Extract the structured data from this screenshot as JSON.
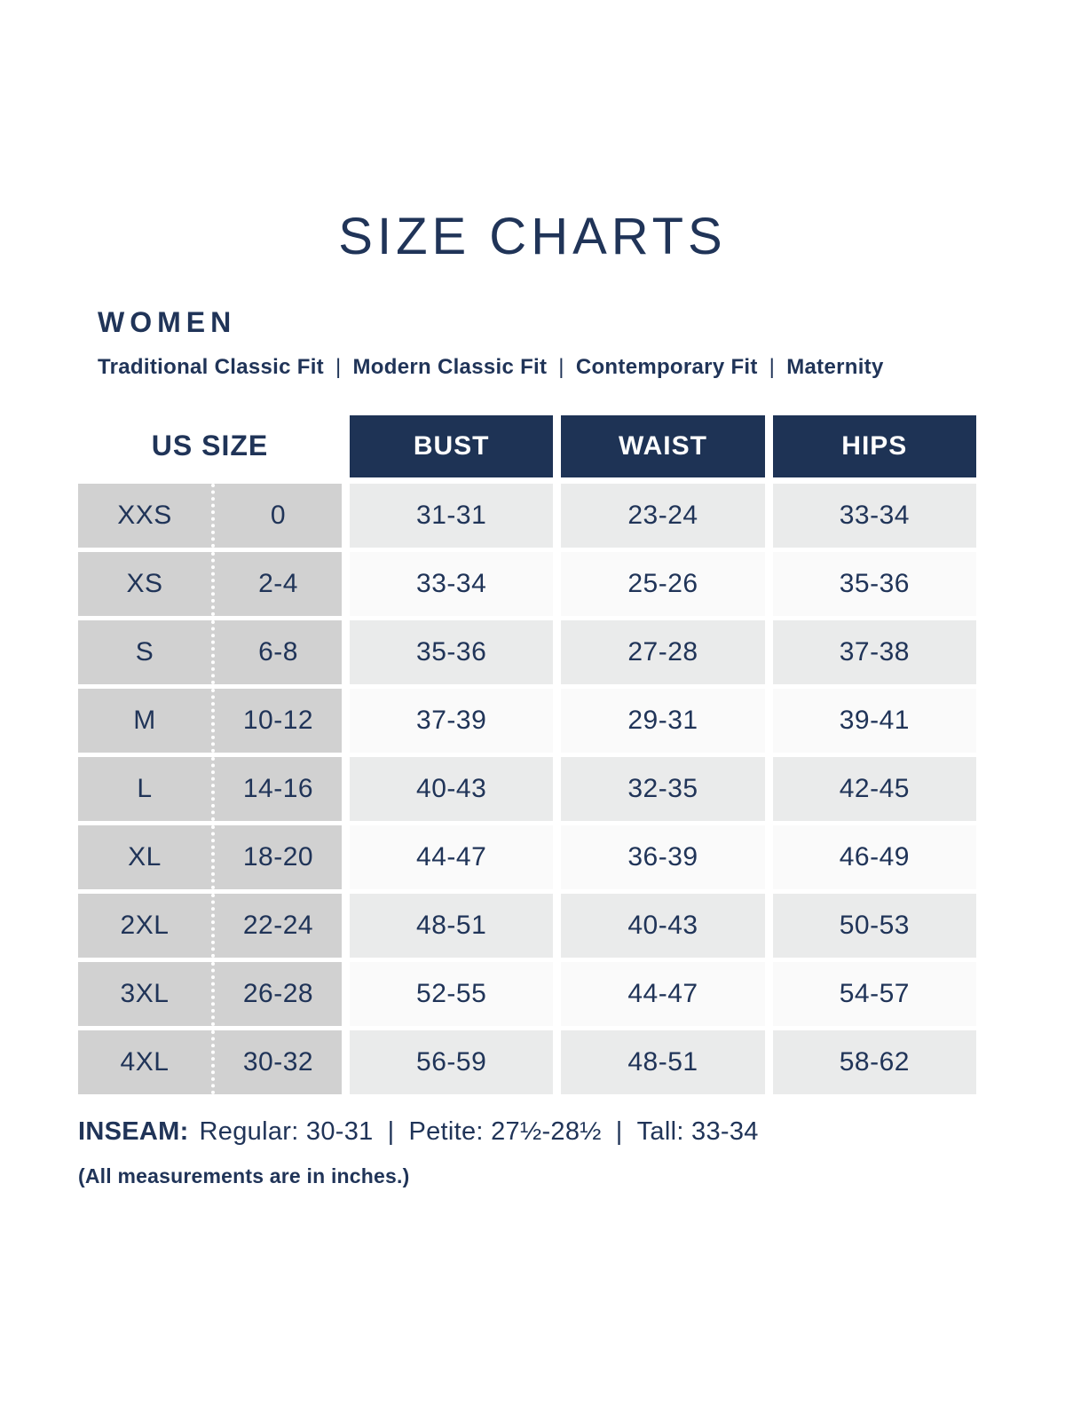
{
  "page": {
    "title": "SIZE CHARTS",
    "section_heading": "WOMEN",
    "fit_separator": "|",
    "fits": [
      "Traditional Classic Fit",
      "Modern Classic Fit",
      "Contemporary Fit",
      "Maternity"
    ]
  },
  "table": {
    "us_size_header": "US SIZE",
    "measure_headers": [
      "BUST",
      "WAIST",
      "HIPS"
    ],
    "rows": [
      {
        "size": "XXS",
        "us": "0",
        "bust": "31-31",
        "waist": "23-24",
        "hips": "33-34"
      },
      {
        "size": "XS",
        "us": "2-4",
        "bust": "33-34",
        "waist": "25-26",
        "hips": "35-36"
      },
      {
        "size": "S",
        "us": "6-8",
        "bust": "35-36",
        "waist": "27-28",
        "hips": "37-38"
      },
      {
        "size": "M",
        "us": "10-12",
        "bust": "37-39",
        "waist": "29-31",
        "hips": "39-41"
      },
      {
        "size": "L",
        "us": "14-16",
        "bust": "40-43",
        "waist": "32-35",
        "hips": "42-45"
      },
      {
        "size": "XL",
        "us": "18-20",
        "bust": "44-47",
        "waist": "36-39",
        "hips": "46-49"
      },
      {
        "size": "2XL",
        "us": "22-24",
        "bust": "48-51",
        "waist": "40-43",
        "hips": "50-53"
      },
      {
        "size": "3XL",
        "us": "26-28",
        "bust": "52-55",
        "waist": "44-47",
        "hips": "54-57"
      },
      {
        "size": "4XL",
        "us": "30-32",
        "bust": "56-59",
        "waist": "48-51",
        "hips": "58-62"
      }
    ]
  },
  "inseam": {
    "label": "INSEAM:",
    "separator": "|",
    "items": [
      "Regular: 30-31",
      "Petite: 27½-28½",
      "Tall: 33-34"
    ]
  },
  "footnote": "(All measurements are in inches.)",
  "colors": {
    "navy_text": "#203458",
    "header_bg": "#1e3355",
    "left_column_gray": "#d1d1d1",
    "row_shaded": "#eaebeb",
    "row_plain": "#fafafa",
    "divider_white": "#ffffff"
  }
}
